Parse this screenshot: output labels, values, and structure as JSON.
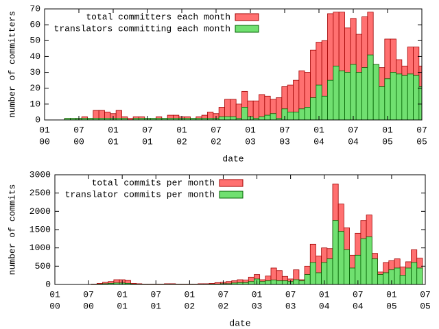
{
  "chart_data": [
    {
      "type": "bar",
      "xlabel": "date",
      "ylabel": "number of committers",
      "legend": "top-left",
      "x": [
        "2000-01",
        "2000-02",
        "2000-03",
        "2000-04",
        "2000-05",
        "2000-06",
        "2000-07",
        "2000-08",
        "2000-09",
        "2000-10",
        "2000-11",
        "2000-12",
        "2001-01",
        "2001-02",
        "2001-03",
        "2001-04",
        "2001-05",
        "2001-06",
        "2001-07",
        "2001-08",
        "2001-09",
        "2001-10",
        "2001-11",
        "2001-12",
        "2002-01",
        "2002-02",
        "2002-03",
        "2002-04",
        "2002-05",
        "2002-06",
        "2002-07",
        "2002-08",
        "2002-09",
        "2002-10",
        "2002-11",
        "2002-12",
        "2003-01",
        "2003-02",
        "2003-03",
        "2003-04",
        "2003-05",
        "2003-06",
        "2003-07",
        "2003-08",
        "2003-09",
        "2003-10",
        "2003-11",
        "2003-12",
        "2004-01",
        "2004-02",
        "2004-03",
        "2004-04",
        "2004-05",
        "2004-06",
        "2004-07",
        "2004-08",
        "2004-09",
        "2004-10",
        "2004-11",
        "2004-12",
        "2005-01",
        "2005-02",
        "2005-03",
        "2005-04",
        "2005-05",
        "2005-06",
        "2005-07"
      ],
      "series": [
        {
          "name": "total committers each month",
          "color": "#ff7070",
          "values": [
            0,
            0,
            0,
            0,
            1,
            1,
            1,
            2,
            1,
            6,
            6,
            5,
            4,
            6,
            2,
            1,
            2,
            2,
            1,
            1,
            2,
            1,
            3,
            3,
            2,
            2,
            1,
            2,
            3,
            5,
            4,
            8,
            13,
            13,
            10,
            18,
            12,
            12,
            16,
            15,
            13,
            14,
            21,
            22,
            25,
            31,
            30,
            44,
            49,
            50,
            67,
            68,
            68,
            58,
            64,
            54,
            65,
            68,
            35,
            33,
            51,
            51,
            38,
            34,
            46,
            46,
            34
          ]
        },
        {
          "name": "translators committing each month",
          "color": "#70e070",
          "values": [
            0,
            0,
            0,
            0,
            1,
            1,
            1,
            1,
            1,
            1,
            1,
            1,
            1,
            1,
            1,
            0,
            1,
            1,
            1,
            1,
            1,
            1,
            1,
            1,
            1,
            1,
            1,
            1,
            1,
            1,
            1,
            2,
            2,
            2,
            1,
            8,
            2,
            1,
            2,
            3,
            4,
            1,
            7,
            5,
            5,
            7,
            8,
            14,
            22,
            15,
            25,
            34,
            31,
            30,
            35,
            30,
            33,
            41,
            35,
            21,
            26,
            30,
            29,
            28,
            29,
            28,
            21
          ]
        }
      ],
      "xlim": [
        "2000-01",
        "2005-07"
      ],
      "xticks": [
        {
          "value": "2000-01",
          "label": [
            "01",
            "00"
          ]
        },
        {
          "value": "2000-07",
          "label": [
            "07",
            "00"
          ]
        },
        {
          "value": "2001-01",
          "label": [
            "01",
            "01"
          ]
        },
        {
          "value": "2001-07",
          "label": [
            "07",
            "01"
          ]
        },
        {
          "value": "2002-01",
          "label": [
            "01",
            "02"
          ]
        },
        {
          "value": "2002-07",
          "label": [
            "07",
            "02"
          ]
        },
        {
          "value": "2003-01",
          "label": [
            "01",
            "03"
          ]
        },
        {
          "value": "2003-07",
          "label": [
            "07",
            "03"
          ]
        },
        {
          "value": "2004-01",
          "label": [
            "01",
            "04"
          ]
        },
        {
          "value": "2004-07",
          "label": [
            "07",
            "04"
          ]
        },
        {
          "value": "2005-01",
          "label": [
            "01",
            "05"
          ]
        },
        {
          "value": "2005-07",
          "label": [
            "07",
            "05"
          ]
        }
      ],
      "ylim": [
        0,
        70
      ],
      "yticks": [
        0,
        10,
        20,
        30,
        40,
        50,
        60,
        70
      ]
    },
    {
      "type": "bar",
      "xlabel": "date",
      "ylabel": "number of commits",
      "legend": "top-left",
      "x": [
        "2000-01",
        "2000-02",
        "2000-03",
        "2000-04",
        "2000-05",
        "2000-06",
        "2000-07",
        "2000-08",
        "2000-09",
        "2000-10",
        "2000-11",
        "2000-12",
        "2001-01",
        "2001-02",
        "2001-03",
        "2001-04",
        "2001-05",
        "2001-06",
        "2001-07",
        "2001-08",
        "2001-09",
        "2001-10",
        "2001-11",
        "2001-12",
        "2002-01",
        "2002-02",
        "2002-03",
        "2002-04",
        "2002-05",
        "2002-06",
        "2002-07",
        "2002-08",
        "2002-09",
        "2002-10",
        "2002-11",
        "2002-12",
        "2003-01",
        "2003-02",
        "2003-03",
        "2003-04",
        "2003-05",
        "2003-06",
        "2003-07",
        "2003-08",
        "2003-09",
        "2003-10",
        "2003-11",
        "2003-12",
        "2004-01",
        "2004-02",
        "2004-03",
        "2004-04",
        "2004-05",
        "2004-06",
        "2004-07",
        "2004-08",
        "2004-09",
        "2004-10",
        "2004-11",
        "2004-12",
        "2005-01",
        "2005-02",
        "2005-03",
        "2005-04",
        "2005-05",
        "2005-06"
      ],
      "series": [
        {
          "name": "total commits per month",
          "color": "#ff7070",
          "values": [
            0,
            0,
            0,
            0,
            0,
            0,
            0,
            10,
            30,
            60,
            80,
            130,
            130,
            110,
            30,
            20,
            10,
            10,
            10,
            10,
            20,
            20,
            10,
            10,
            10,
            10,
            20,
            20,
            30,
            50,
            60,
            80,
            100,
            130,
            120,
            200,
            270,
            130,
            230,
            450,
            380,
            220,
            150,
            400,
            130,
            500,
            1100,
            780,
            1000,
            980,
            2750,
            2200,
            1550,
            800,
            1400,
            1750,
            1900,
            850,
            340,
            600,
            650,
            700,
            480,
            620,
            950,
            720
          ]
        },
        {
          "name": "translator commits per month",
          "color": "#70e070",
          "values": [
            0,
            0,
            0,
            0,
            0,
            0,
            0,
            5,
            10,
            20,
            30,
            40,
            40,
            30,
            10,
            5,
            5,
            5,
            5,
            5,
            5,
            5,
            5,
            5,
            5,
            5,
            5,
            5,
            10,
            10,
            20,
            20,
            40,
            50,
            50,
            80,
            150,
            80,
            100,
            120,
            100,
            100,
            80,
            130,
            100,
            270,
            600,
            320,
            600,
            700,
            1750,
            1450,
            950,
            450,
            800,
            1250,
            1300,
            700,
            270,
            320,
            400,
            450,
            250,
            450,
            600,
            450
          ]
        }
      ],
      "xlim": [
        "2000-01",
        "2005-07"
      ],
      "xticks": [
        {
          "value": "2000-01",
          "label": [
            "01",
            "00"
          ]
        },
        {
          "value": "2000-07",
          "label": [
            "07",
            "00"
          ]
        },
        {
          "value": "2001-01",
          "label": [
            "01",
            "01"
          ]
        },
        {
          "value": "2001-07",
          "label": [
            "07",
            "01"
          ]
        },
        {
          "value": "2002-01",
          "label": [
            "01",
            "02"
          ]
        },
        {
          "value": "2002-07",
          "label": [
            "07",
            "02"
          ]
        },
        {
          "value": "2003-01",
          "label": [
            "01",
            "03"
          ]
        },
        {
          "value": "2003-07",
          "label": [
            "07",
            "03"
          ]
        },
        {
          "value": "2004-01",
          "label": [
            "01",
            "04"
          ]
        },
        {
          "value": "2004-07",
          "label": [
            "07",
            "04"
          ]
        },
        {
          "value": "2005-01",
          "label": [
            "01",
            "05"
          ]
        },
        {
          "value": "2005-07",
          "label": [
            "07",
            "05"
          ]
        }
      ],
      "ylim": [
        0,
        3000
      ],
      "yticks": [
        0,
        500,
        1000,
        1500,
        2000,
        2500,
        3000
      ]
    }
  ]
}
